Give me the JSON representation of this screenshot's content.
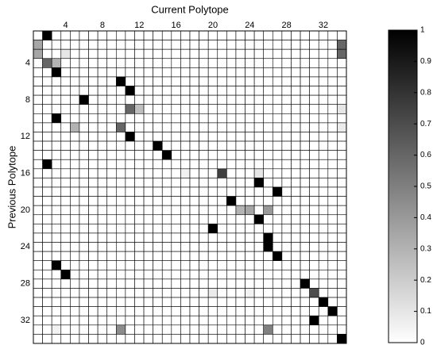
{
  "chart_data": {
    "type": "heatmap",
    "x_label": "Current Polytope",
    "y_label": "Previous Polytope",
    "x_categories": [
      null,
      null,
      null,
      4,
      null,
      null,
      null,
      8,
      null,
      null,
      null,
      12,
      null,
      null,
      null,
      16,
      null,
      null,
      null,
      20,
      null,
      null,
      null,
      24,
      null,
      null,
      null,
      28,
      null,
      null,
      null,
      32,
      null,
      null
    ],
    "y_categories": [
      null,
      null,
      null,
      4,
      null,
      null,
      null,
      8,
      null,
      null,
      null,
      12,
      null,
      null,
      null,
      16,
      null,
      null,
      null,
      20,
      null,
      null,
      null,
      24,
      null,
      null,
      null,
      28,
      null,
      null,
      null,
      32,
      null,
      null
    ],
    "values": [
      [
        0,
        1,
        0,
        0,
        0,
        0,
        0,
        0,
        0,
        0,
        0,
        0,
        0,
        0,
        0,
        0,
        0,
        0,
        0,
        0,
        0,
        0,
        0,
        0,
        0,
        0,
        0,
        0,
        0,
        0,
        0,
        0,
        0,
        0
      ],
      [
        0.35,
        0,
        0,
        0,
        0,
        0,
        0,
        0,
        0,
        0,
        0,
        0,
        0,
        0,
        0,
        0,
        0,
        0,
        0,
        0,
        0,
        0,
        0,
        0,
        0,
        0,
        0,
        0,
        0,
        0,
        0,
        0,
        0,
        0.6
      ],
      [
        0.35,
        0,
        0,
        0.1,
        0,
        0,
        0,
        0,
        0,
        0,
        0,
        0,
        0,
        0,
        0,
        0,
        0,
        0,
        0,
        0,
        0,
        0,
        0,
        0,
        0,
        0,
        0,
        0,
        0,
        0,
        0,
        0,
        0,
        0.6
      ],
      [
        0,
        0.6,
        0.3,
        0,
        0,
        0,
        0,
        0,
        0,
        0,
        0,
        0,
        0,
        0,
        0,
        0,
        0,
        0,
        0,
        0,
        0,
        0,
        0,
        0,
        0,
        0,
        0,
        0,
        0,
        0,
        0,
        0,
        0,
        0
      ],
      [
        0,
        0,
        1,
        0,
        0,
        0,
        0,
        0,
        0,
        0,
        0,
        0,
        0,
        0,
        0,
        0,
        0,
        0,
        0,
        0,
        0,
        0,
        0,
        0,
        0,
        0,
        0,
        0,
        0,
        0,
        0,
        0,
        0,
        0
      ],
      [
        0,
        0,
        0,
        0,
        0,
        0,
        0,
        0,
        0,
        1,
        0,
        0,
        0,
        0,
        0,
        0,
        0,
        0,
        0,
        0,
        0,
        0,
        0,
        0,
        0,
        0,
        0,
        0,
        0,
        0,
        0,
        0,
        0,
        0
      ],
      [
        0,
        0,
        0,
        0,
        0,
        0,
        0,
        0,
        0,
        0,
        1,
        0,
        0,
        0,
        0,
        0,
        0,
        0,
        0,
        0,
        0,
        0,
        0,
        0,
        0,
        0,
        0,
        0,
        0,
        0,
        0,
        0,
        0,
        0
      ],
      [
        0,
        0,
        0,
        0,
        0,
        1,
        0,
        0,
        0,
        0,
        0,
        0,
        0,
        0,
        0,
        0,
        0,
        0,
        0,
        0,
        0,
        0,
        0,
        0,
        0,
        0,
        0,
        0,
        0,
        0,
        0,
        0,
        0,
        0
      ],
      [
        0,
        0,
        0,
        0,
        0,
        0,
        0,
        0,
        0,
        0,
        0.6,
        0.25,
        0,
        0,
        0,
        0,
        0,
        0,
        0,
        0,
        0,
        0,
        0,
        0,
        0,
        0,
        0,
        0,
        0,
        0,
        0,
        0,
        0,
        0.1
      ],
      [
        0,
        0,
        1,
        0,
        0,
        0,
        0,
        0,
        0,
        0,
        0,
        0,
        0,
        0,
        0,
        0,
        0,
        0,
        0,
        0,
        0,
        0,
        0,
        0,
        0,
        0,
        0,
        0,
        0,
        0,
        0,
        0,
        0,
        0
      ],
      [
        0,
        0,
        0,
        0,
        0.3,
        0,
        0,
        0,
        0,
        0.6,
        0,
        0,
        0,
        0,
        0,
        0,
        0,
        0,
        0,
        0,
        0,
        0,
        0,
        0,
        0,
        0,
        0,
        0,
        0,
        0,
        0,
        0,
        0,
        0.08
      ],
      [
        0,
        0,
        0,
        0,
        0,
        0,
        0,
        0,
        0,
        0,
        1,
        0,
        0,
        0,
        0,
        0,
        0,
        0,
        0,
        0,
        0,
        0,
        0,
        0,
        0,
        0,
        0,
        0,
        0,
        0,
        0,
        0,
        0,
        0
      ],
      [
        0,
        0,
        0,
        0,
        0,
        0,
        0,
        0,
        0,
        0,
        0,
        0,
        0,
        1,
        0,
        0,
        0,
        0,
        0,
        0,
        0,
        0,
        0,
        0,
        0,
        0,
        0,
        0,
        0,
        0,
        0,
        0,
        0,
        0
      ],
      [
        0,
        0,
        0,
        0,
        0,
        0,
        0,
        0,
        0,
        0,
        0,
        0,
        0,
        0,
        1,
        0,
        0,
        0,
        0,
        0,
        0,
        0,
        0,
        0,
        0,
        0,
        0,
        0,
        0,
        0,
        0,
        0,
        0,
        0
      ],
      [
        0,
        1,
        0,
        0,
        0,
        0,
        0,
        0,
        0,
        0,
        0,
        0,
        0,
        0,
        0,
        0,
        0,
        0,
        0,
        0,
        0,
        0,
        0,
        0,
        0,
        0,
        0,
        0,
        0,
        0,
        0,
        0,
        0,
        0
      ],
      [
        0,
        0,
        0,
        0,
        0,
        0,
        0,
        0,
        0,
        0,
        0,
        0,
        0,
        0,
        0,
        0,
        0.05,
        0,
        0,
        0,
        0.75,
        0,
        0,
        0,
        0.1,
        0,
        0,
        0,
        0,
        0,
        0,
        0,
        0,
        0
      ],
      [
        0,
        0,
        0,
        0,
        0,
        0,
        0,
        0,
        0,
        0,
        0,
        0,
        0,
        0,
        0,
        0,
        0,
        0,
        0,
        0,
        0,
        0,
        0,
        0,
        1,
        0,
        0,
        0,
        0,
        0,
        0,
        0,
        0,
        0
      ],
      [
        0,
        0,
        0,
        0,
        0,
        0,
        0,
        0,
        0,
        0,
        0,
        0,
        0,
        0,
        0,
        0,
        0,
        0,
        0,
        0,
        0,
        0,
        0,
        0,
        0,
        0,
        1,
        0,
        0,
        0,
        0,
        0,
        0,
        0
      ],
      [
        0,
        0,
        0,
        0,
        0,
        0,
        0,
        0,
        0,
        0,
        0,
        0,
        0,
        0,
        0,
        0,
        0,
        0,
        0,
        0,
        0,
        1,
        0,
        0,
        0,
        0,
        0,
        0,
        0,
        0,
        0,
        0,
        0,
        0
      ],
      [
        0,
        0,
        0,
        0,
        0,
        0,
        0,
        0,
        0,
        0,
        0,
        0,
        0,
        0,
        0,
        0,
        0,
        0,
        0,
        0,
        0,
        0,
        0.3,
        0.35,
        0,
        0.4,
        0,
        0,
        0,
        0,
        0,
        0,
        0,
        0
      ],
      [
        0,
        0,
        0,
        0,
        0,
        0,
        0,
        0,
        0,
        0,
        0,
        0,
        0,
        0,
        0,
        0,
        0,
        0,
        0,
        0,
        0,
        0,
        0,
        0,
        1,
        0,
        0,
        0,
        0,
        0,
        0,
        0,
        0,
        0
      ],
      [
        0,
        0,
        0,
        0,
        0,
        0,
        0,
        0,
        0,
        0,
        0,
        0,
        0,
        0,
        0,
        0,
        0,
        0,
        0,
        1,
        0,
        0,
        0,
        0,
        0,
        0,
        0,
        0,
        0,
        0,
        0,
        0,
        0,
        0
      ],
      [
        0,
        0,
        0,
        0,
        0,
        0,
        0,
        0,
        0,
        0,
        0,
        0,
        0,
        0,
        0,
        0,
        0,
        0,
        0,
        0,
        0,
        0,
        0,
        0,
        0,
        1,
        0,
        0,
        0,
        0,
        0,
        0,
        0,
        0
      ],
      [
        0,
        0,
        0,
        0,
        0,
        0,
        0,
        0,
        0,
        0,
        0,
        0,
        0,
        0,
        0,
        0,
        0,
        0,
        0,
        0,
        0,
        0,
        0,
        0,
        0,
        1,
        0,
        0,
        0,
        0,
        0,
        0,
        0,
        0
      ],
      [
        0,
        0,
        0,
        0,
        0,
        0,
        0,
        0,
        0,
        0,
        0,
        0,
        0,
        0,
        0,
        0,
        0,
        0,
        0,
        0,
        0,
        0,
        0,
        0,
        0,
        0,
        1,
        0,
        0,
        0,
        0,
        0,
        0,
        0
      ],
      [
        0,
        0,
        1,
        0,
        0,
        0,
        0,
        0,
        0,
        0,
        0,
        0,
        0,
        0,
        0,
        0,
        0,
        0,
        0,
        0,
        0,
        0,
        0,
        0,
        0,
        0,
        0,
        0,
        0,
        0,
        0,
        0,
        0,
        0
      ],
      [
        0,
        0,
        0,
        1,
        0,
        0,
        0,
        0,
        0,
        0,
        0,
        0,
        0,
        0,
        0,
        0,
        0,
        0,
        0,
        0,
        0,
        0,
        0,
        0,
        0,
        0,
        0,
        0,
        0,
        0,
        0,
        0,
        0,
        0
      ],
      [
        0,
        0,
        0,
        0,
        0,
        0,
        0,
        0,
        0,
        0,
        0,
        0,
        0,
        0,
        0,
        0,
        0,
        0,
        0,
        0,
        0,
        0,
        0,
        0,
        0,
        0,
        0,
        0,
        0,
        1,
        0,
        0,
        0,
        0
      ],
      [
        0,
        0,
        0,
        0,
        0,
        0,
        0,
        0,
        0,
        0,
        0,
        0,
        0,
        0,
        0,
        0,
        0,
        0,
        0,
        0.08,
        0,
        0,
        0,
        0.05,
        0,
        0,
        0,
        0,
        0,
        0,
        0.7,
        0,
        0,
        0
      ],
      [
        0,
        0,
        0,
        0,
        0,
        0,
        0,
        0,
        0,
        0,
        0,
        0,
        0,
        0,
        0,
        0,
        0,
        0,
        0,
        0,
        0,
        0,
        0,
        0,
        0,
        0,
        0,
        0,
        0,
        0,
        0,
        1,
        0,
        0
      ],
      [
        0,
        0,
        0,
        0,
        0,
        0,
        0,
        0,
        0,
        0,
        0,
        0,
        0,
        0,
        0,
        0,
        0,
        0,
        0,
        0,
        0,
        0,
        0,
        0,
        0,
        0,
        0,
        0,
        0,
        0,
        0,
        0,
        1,
        0
      ],
      [
        0,
        0,
        0,
        0,
        0,
        0,
        0,
        0,
        0,
        0,
        0,
        0,
        0,
        0,
        0,
        0,
        0,
        0,
        0,
        0,
        0,
        0,
        0,
        0,
        0,
        0,
        0,
        0,
        0,
        0,
        1,
        0,
        0,
        0
      ],
      [
        0,
        0,
        0.05,
        0,
        0,
        0,
        0,
        0,
        0,
        0.45,
        0,
        0,
        0,
        0,
        0,
        0,
        0,
        0,
        0,
        0,
        0,
        0,
        0,
        0,
        0,
        0.5,
        0,
        0,
        0,
        0,
        0,
        0,
        0,
        0
      ],
      [
        0,
        0,
        0,
        0,
        0,
        0,
        0,
        0,
        0,
        0,
        0,
        0,
        0,
        0,
        0,
        0,
        0,
        0,
        0,
        0,
        0,
        0,
        0,
        0,
        0,
        0,
        0,
        0,
        0,
        0,
        0,
        0,
        0,
        1
      ]
    ],
    "clim": [
      0,
      1
    ],
    "colorbar_ticks": [
      0,
      0.1,
      0.2,
      0.3,
      0.4,
      0.5,
      0.6,
      0.7,
      0.8,
      0.9,
      1
    ]
  }
}
